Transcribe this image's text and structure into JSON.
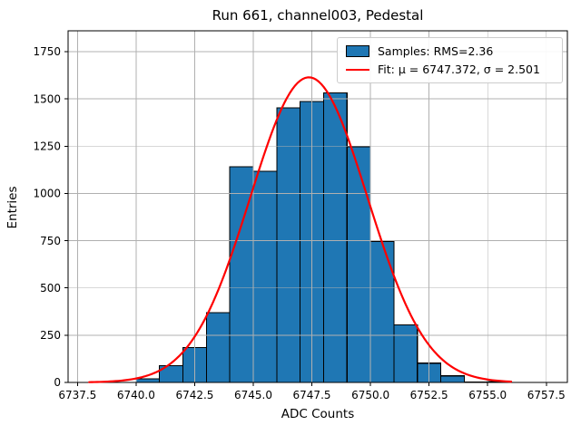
{
  "title": "Run 661, channel003, Pedestal",
  "xlabel": "ADC Counts",
  "ylabel": "Entries",
  "legend": {
    "samples_label": "Samples: RMS=2.36",
    "fit_label": "Fit: μ = 6747.372, σ = 2.501",
    "position": "upper right"
  },
  "colors": {
    "bar_fill": "#1f77b4",
    "bar_edge": "#000000",
    "fit_line": "#ff0000",
    "grid": "#b0b0b0",
    "spine": "#000000",
    "text": "#000000"
  },
  "chart_data": {
    "type": "bar",
    "subtype": "histogram",
    "title": "Run 661, channel003, Pedestal",
    "xlabel": "ADC Counts",
    "ylabel": "Entries",
    "grid": true,
    "legend_position": "upper right",
    "xlim": [
      6737.1,
      6758.4
    ],
    "ylim": [
      0,
      1860
    ],
    "x_ticks": [
      6737.5,
      6740.0,
      6742.5,
      6745.0,
      6747.5,
      6750.0,
      6752.5,
      6755.0,
      6757.5
    ],
    "x_tick_labels": [
      "6737.5",
      "6740.0",
      "6742.5",
      "6745.0",
      "6747.5",
      "6750.0",
      "6752.5",
      "6755.0",
      "6757.5"
    ],
    "y_ticks": [
      0,
      250,
      500,
      750,
      1000,
      1250,
      1500,
      1750
    ],
    "y_tick_labels": [
      "0",
      "250",
      "500",
      "750",
      "1000",
      "1250",
      "1500",
      "1750"
    ],
    "histogram": {
      "bin_edges": [
        6740,
        6741,
        6742,
        6743,
        6744,
        6745,
        6746,
        6747,
        6748,
        6749,
        6750,
        6751,
        6752,
        6753,
        6754,
        6755,
        6756
      ],
      "counts": [
        20,
        88,
        185,
        369,
        1140,
        1116,
        1452,
        1487,
        1532,
        1247,
        746,
        305,
        102,
        35,
        3,
        5
      ],
      "rms": 2.36
    },
    "fit": {
      "shape": "gaussian",
      "mu": 6747.372,
      "sigma": 2.501,
      "amplitude": 1614,
      "x_range": [
        6738,
        6756
      ]
    }
  }
}
